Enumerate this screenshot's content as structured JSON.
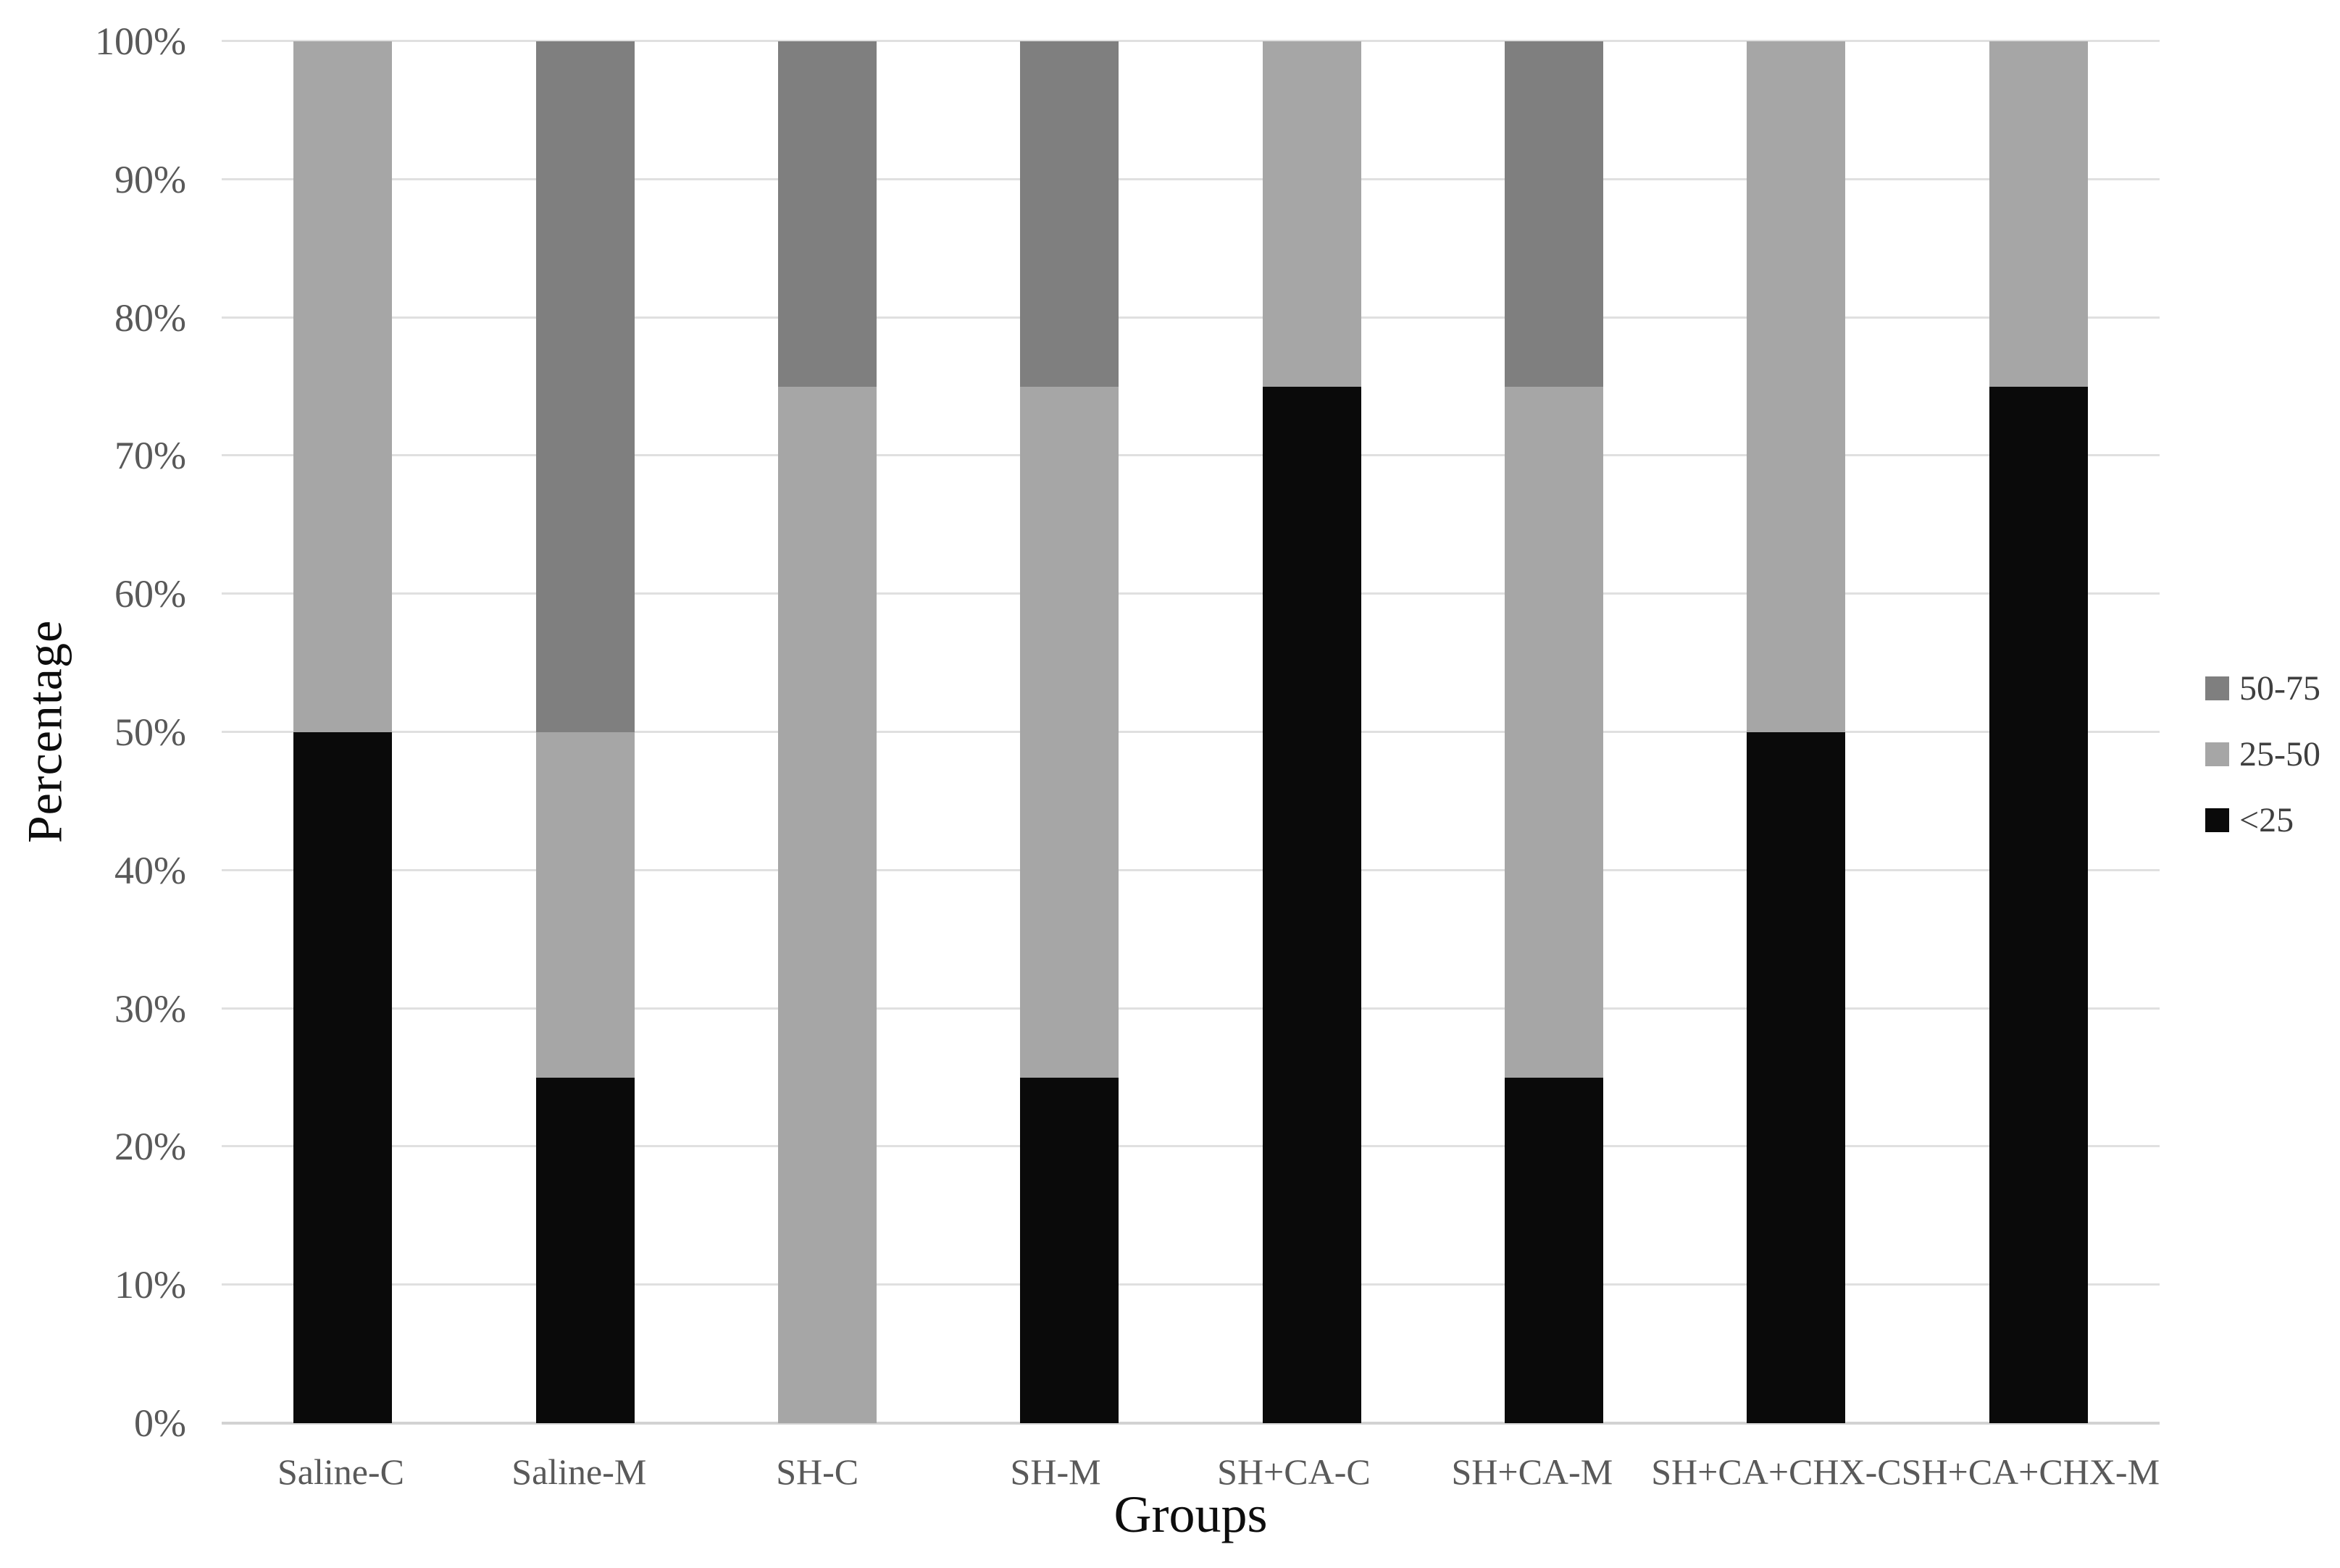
{
  "chart_data": {
    "type": "bar",
    "stacked": true,
    "title": "",
    "xlabel": "Groups",
    "ylabel": "Percentage",
    "categories": [
      "Saline-C",
      "Saline-M",
      "SH-C",
      "SH-M",
      "SH+CA-C",
      "SH+CA-M",
      "SH+CA+CHX-C",
      "SH+CA+CHX-M"
    ],
    "series": [
      {
        "name": "<25",
        "color": "#0a0a0a",
        "values": [
          50,
          25,
          0,
          25,
          75,
          25,
          50,
          75
        ]
      },
      {
        "name": "25-50",
        "color": "#a6a6a6",
        "values": [
          50,
          25,
          75,
          50,
          25,
          50,
          50,
          25
        ]
      },
      {
        "name": "50-75",
        "color": "#7f7f7f",
        "values": [
          0,
          50,
          25,
          25,
          0,
          25,
          0,
          0
        ]
      }
    ],
    "y_ticks": [
      "0%",
      "10%",
      "20%",
      "30%",
      "40%",
      "50%",
      "60%",
      "70%",
      "80%",
      "90%",
      "100%"
    ],
    "ylim": [
      0,
      100
    ],
    "grid": true,
    "legend_position": "right",
    "legend_order": [
      "50-75",
      "25-50",
      "<25"
    ],
    "style": {
      "background": "#ffffff",
      "gridline_color": "#e0e0e0",
      "axis_line_color": "#d2d2d2",
      "tick_text_color": "#595959",
      "title_text_color": "#0d0d0d",
      "legend_text_color": "#3f3f3f"
    }
  }
}
